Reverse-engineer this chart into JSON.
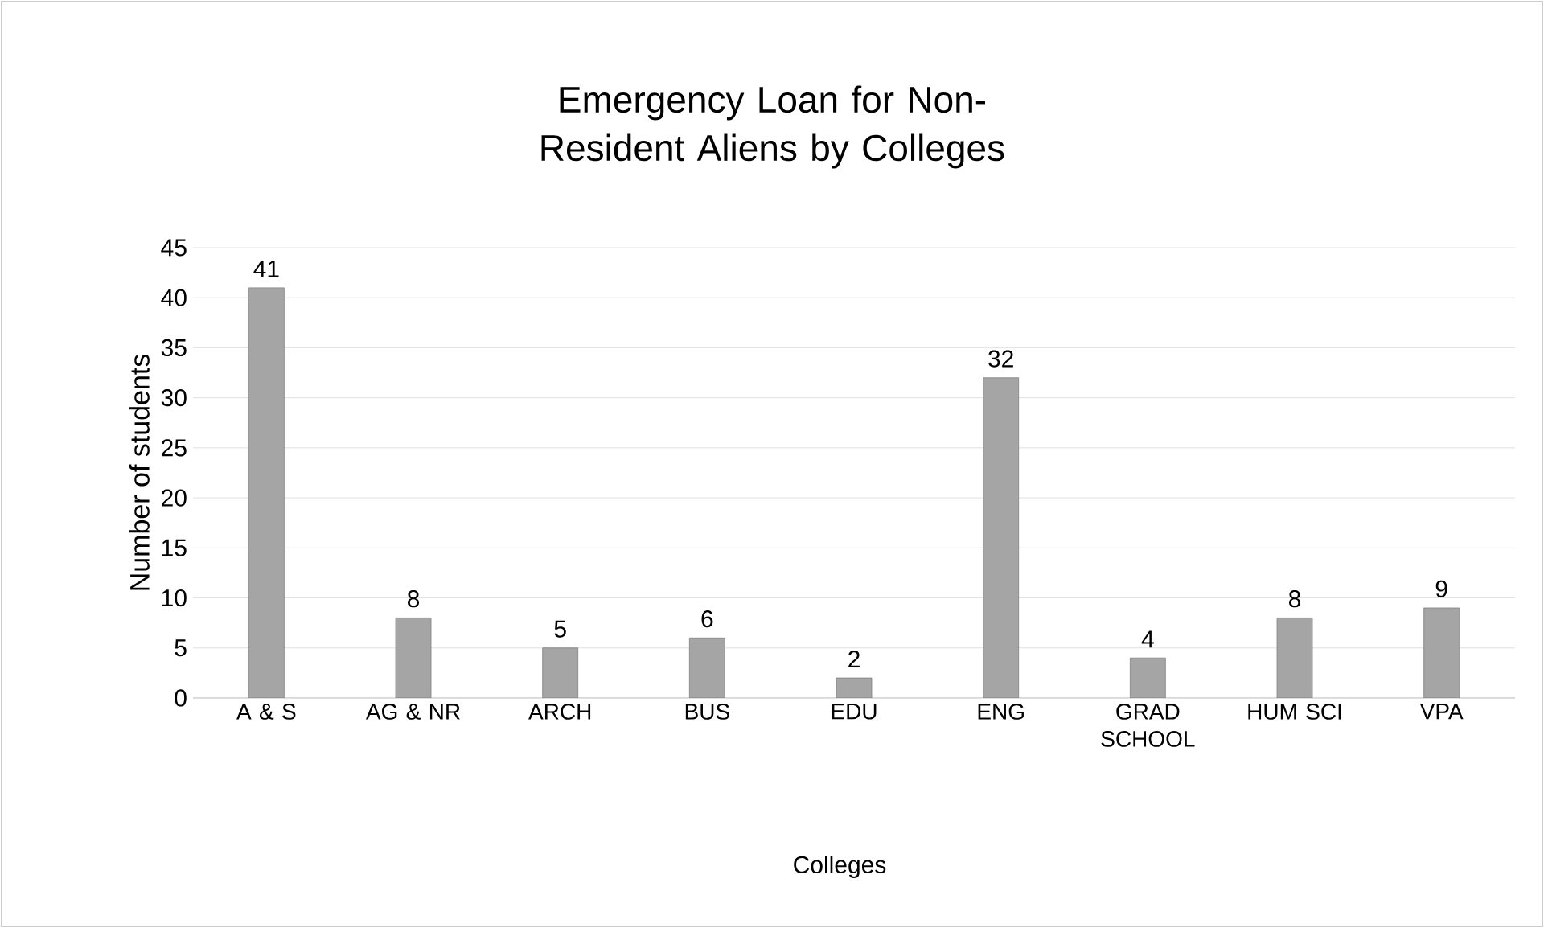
{
  "chart_data": {
    "type": "bar",
    "title": "Emergency Loan for Non-Resident Aliens by Colleges",
    "xlabel": "Colleges",
    "ylabel": "Number of students",
    "categories": [
      "A & S",
      "AG & NR",
      "ARCH",
      "BUS",
      "EDU",
      "ENG",
      "GRAD SCHOOL",
      "HUM SCI",
      "VPA"
    ],
    "values": [
      41,
      8,
      5,
      6,
      2,
      32,
      4,
      8,
      9
    ],
    "color": "#a5a5a5",
    "ylim": [
      0,
      45
    ],
    "yticks": [
      0,
      5,
      10,
      15,
      20,
      25,
      30,
      35,
      40,
      45
    ],
    "grid": "y",
    "data_labels": true
  }
}
